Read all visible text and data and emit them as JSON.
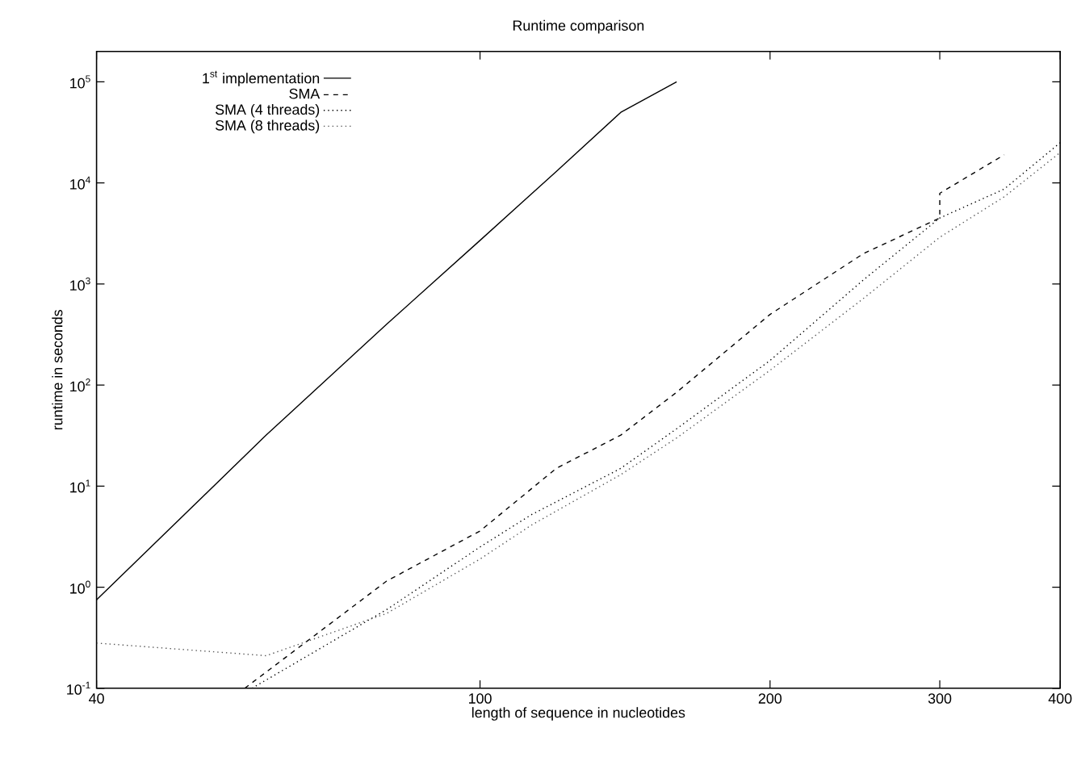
{
  "chart_data": {
    "type": "line",
    "title": "Runtime comparison",
    "xlabel": "length of sequence in nucleotides",
    "ylabel": "runtime in seconds",
    "log": "xy",
    "grid": false,
    "legend": "top left",
    "marker": "none",
    "xlim": [
      40,
      400
    ],
    "xticks": [
      40,
      100,
      200,
      300,
      400
    ],
    "ylim": [
      0.1,
      200000
    ],
    "yticks": [
      {
        "value": 0.1,
        "label": "10$^{-1}$"
      },
      {
        "value": 1,
        "label": "10$^{0}$"
      },
      {
        "value": 10,
        "label": "10$^{1}$"
      },
      {
        "value": 100,
        "label": "10$^{2}$"
      },
      {
        "value": 1000,
        "label": "10$^{3}$"
      },
      {
        "value": 10000,
        "label": "10$^{4}$"
      },
      {
        "value": 100000,
        "label": "10$^{5}$"
      }
    ],
    "series": [
      {
        "name": "1$^{st}$ implementation",
        "color": "#000000",
        "line_style": "solid",
        "x": [
          40,
          60,
          80,
          100,
          120,
          140,
          160
        ],
        "values": [
          0.75,
          32,
          400,
          2700,
          13000,
          50000,
          100000
        ]
      },
      {
        "name": "SMA",
        "color": "#000000",
        "line_style": "dashed",
        "x": [
          57,
          80,
          100,
          120,
          140,
          160,
          200,
          250,
          300,
          300,
          350
        ],
        "values": [
          0.1,
          1.15,
          3.6,
          15,
          32,
          85,
          500,
          2000,
          4500,
          7900,
          19000
        ]
      },
      {
        "name": "SMA (4 threads)",
        "color": "#000000",
        "line_style": "dotted",
        "x": [
          58,
          80,
          100,
          113,
          140,
          160,
          200,
          250,
          300,
          350,
          400
        ],
        "values": [
          0.1,
          0.6,
          2.5,
          5.2,
          15,
          37,
          175,
          1100,
          4500,
          8700,
          25000
        ]
      },
      {
        "name": "SMA (8 threads)",
        "color": "#555555",
        "line_style": "dotted",
        "x": [
          40,
          60,
          80,
          100,
          113,
          140,
          160,
          200,
          250,
          300,
          350,
          400
        ],
        "values": [
          0.28,
          0.21,
          0.55,
          1.9,
          4.1,
          13,
          30,
          140,
          720,
          2900,
          7300,
          20000
        ]
      }
    ]
  }
}
